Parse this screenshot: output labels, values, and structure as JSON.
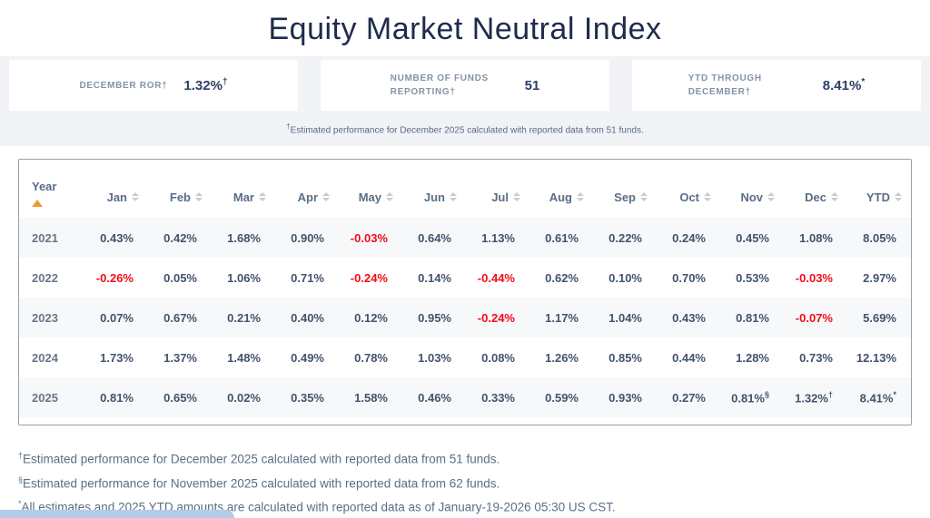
{
  "page": {
    "title": "Equity Market Neutral Index"
  },
  "stats": {
    "cards": [
      {
        "label": "DECEMBER ROR†",
        "value": "1.32%",
        "sup": "†"
      },
      {
        "label": "NUMBER OF FUNDS REPORTING†",
        "value": "51",
        "sup": ""
      },
      {
        "label": "YTD THROUGH DECEMBER†",
        "value": "8.41%",
        "sup": "*"
      }
    ],
    "footnote_sup": "†",
    "footnote_text": "Estimated performance for December 2025 calculated with reported data from 51 funds."
  },
  "table": {
    "year_label": "Year",
    "months": [
      "Jan",
      "Feb",
      "Mar",
      "Apr",
      "May",
      "Jun",
      "Jul",
      "Aug",
      "Sep",
      "Oct",
      "Nov",
      "Dec",
      "YTD"
    ],
    "rows": [
      {
        "year": "2021",
        "values": [
          "0.43%",
          "0.42%",
          "1.68%",
          "0.90%",
          "-0.03%",
          "0.64%",
          "1.13%",
          "0.61%",
          "0.22%",
          "0.24%",
          "0.45%",
          "1.08%",
          "8.05%"
        ]
      },
      {
        "year": "2022",
        "values": [
          "-0.26%",
          "0.05%",
          "1.06%",
          "0.71%",
          "-0.24%",
          "0.14%",
          "-0.44%",
          "0.62%",
          "0.10%",
          "0.70%",
          "0.53%",
          "-0.03%",
          "2.97%"
        ]
      },
      {
        "year": "2023",
        "values": [
          "0.07%",
          "0.67%",
          "0.21%",
          "0.40%",
          "0.12%",
          "0.95%",
          "-0.24%",
          "1.17%",
          "1.04%",
          "0.43%",
          "0.81%",
          "-0.07%",
          "5.69%"
        ]
      },
      {
        "year": "2024",
        "values": [
          "1.73%",
          "1.37%",
          "1.48%",
          "0.49%",
          "0.78%",
          "1.03%",
          "0.08%",
          "1.26%",
          "0.85%",
          "0.44%",
          "1.28%",
          "0.73%",
          "12.13%"
        ]
      },
      {
        "year": "2025",
        "values": [
          "0.81%",
          "0.65%",
          "0.02%",
          "0.35%",
          "1.58%",
          "0.46%",
          "0.33%",
          "0.59%",
          "0.93%",
          "0.27%",
          "0.81%§",
          "1.32%†",
          "8.41%*"
        ]
      }
    ]
  },
  "footnotes": [
    {
      "sup": "†",
      "text": "Estimated performance for December 2025 calculated with reported data from 51 funds."
    },
    {
      "sup": "§",
      "text": "Estimated performance for November 2025 calculated with reported data from 62 funds."
    },
    {
      "sup": "*",
      "text": "All estimates and 2025 YTD amounts are calculated with reported data as of January-19-2026 05:30 US CST."
    }
  ],
  "colors": {
    "title": "#1e2b4d",
    "stat_label": "#8593a8",
    "stat_value": "#2c3f66",
    "cell_text": "#43536d",
    "negative": "#f30b1a",
    "sort_active": "#e99b33",
    "sort_inactive": "#c7cbd3",
    "band_bg": "#f2f3f6",
    "row_stripe": "#f7f8f9",
    "table_border": "#98a0ac",
    "footnote_text": "#5b6e86",
    "widget_blue": "#b6cbea"
  }
}
